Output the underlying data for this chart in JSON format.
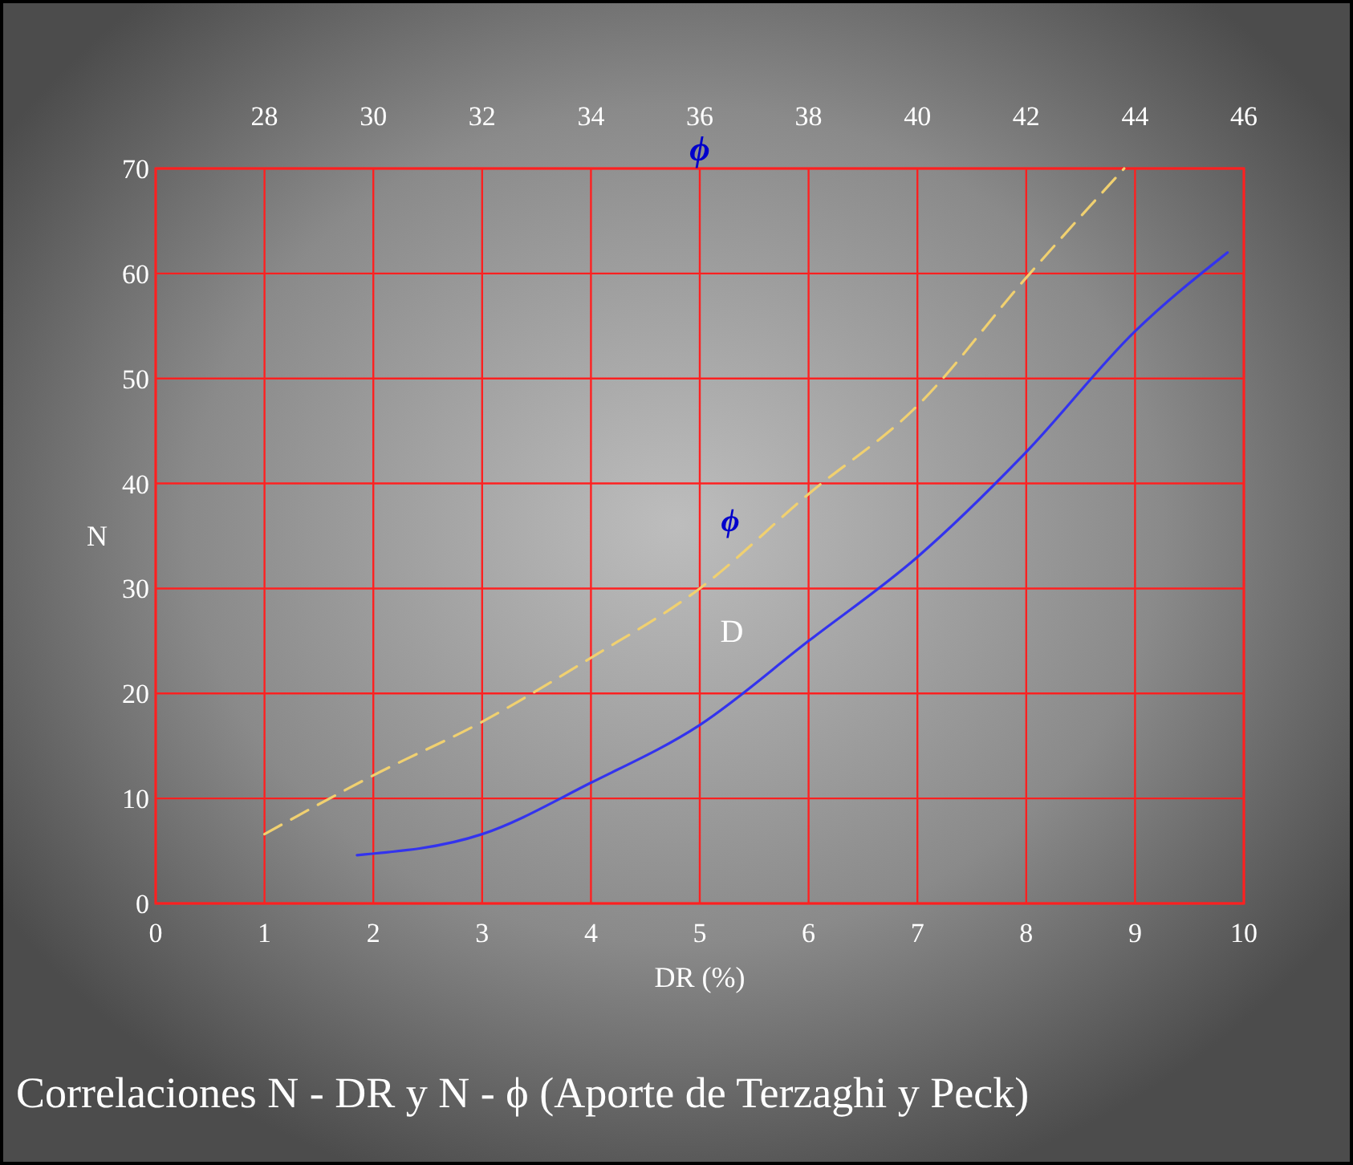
{
  "chart_data": {
    "type": "line",
    "xlabel": "DR (%)",
    "ylabel": "N",
    "x2label": "ϕ",
    "xlim": [
      0,
      10
    ],
    "xticks": [
      0,
      1,
      2,
      3,
      4,
      5,
      6,
      7,
      8,
      9,
      10
    ],
    "x2lim": [
      26,
      46
    ],
    "x2ticks": [
      28,
      30,
      32,
      34,
      36,
      38,
      40,
      42,
      44,
      46
    ],
    "ylim": [
      0,
      70
    ],
    "yticks": [
      0,
      10,
      20,
      30,
      40,
      50,
      60,
      70
    ],
    "grid": true,
    "marker": "none",
    "series": [
      {
        "color": "#3333ee",
        "line_style": "solid",
        "x": [
          1.85,
          3,
          4,
          5,
          6,
          7,
          8,
          9,
          9.85
        ],
        "values": [
          4.6,
          6.6,
          11.5,
          17,
          25,
          33,
          43,
          54.5,
          62
        ]
      },
      {
        "color": "#f0d070",
        "line_style": "dashed",
        "x": [
          1,
          2,
          3,
          4,
          5,
          6,
          7,
          8,
          8.9
        ],
        "values": [
          6.6,
          12.2,
          17.3,
          23.4,
          30,
          39,
          47.4,
          59.6,
          70
        ]
      }
    ],
    "annotations": [
      "ϕ",
      "D",
      "Correlaciones  N - DR  y  N - ϕ (Aporte de Terzaghi y Peck)"
    ]
  }
}
